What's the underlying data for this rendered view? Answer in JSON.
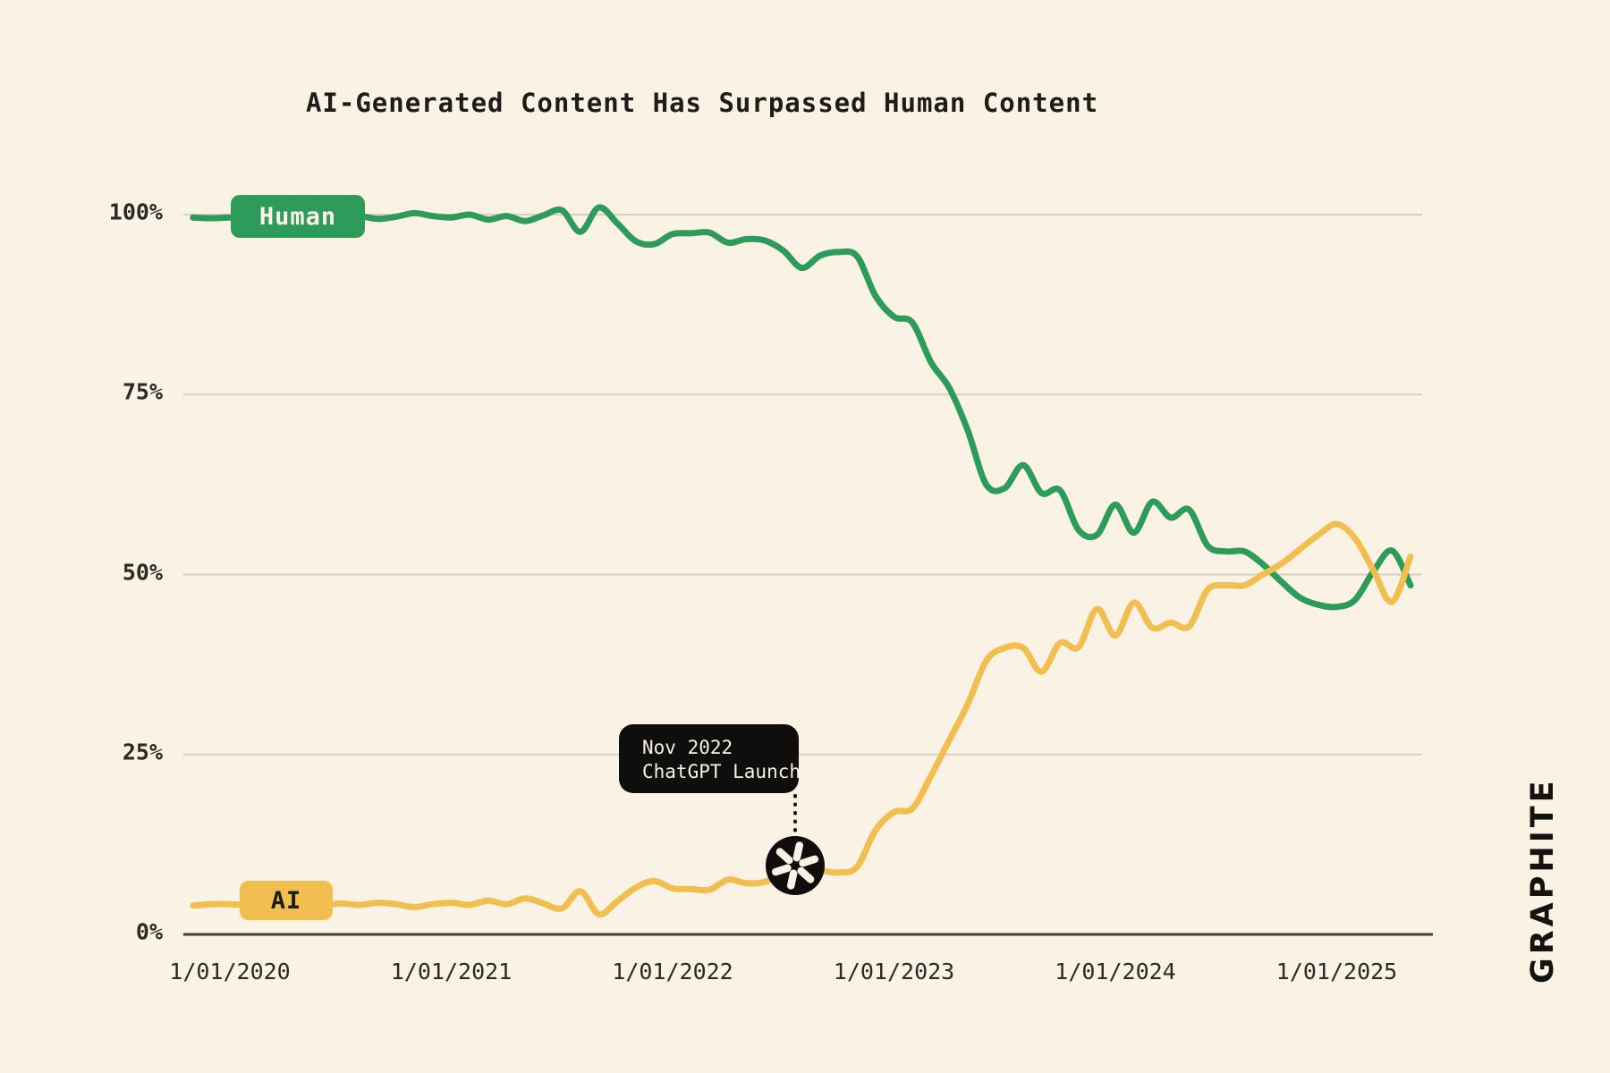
{
  "title": "AI-Generated Content Has Surpassed Human Content",
  "logo_text": "GRAPHITE",
  "colors": {
    "background": "#faf2e4",
    "human_line": "#2d9c5a",
    "ai_line": "#f2be4f",
    "gridline": "#d9cfbe",
    "axis_line": "#403d35",
    "text": "#2b2a25",
    "tooltip_bg": "#0f0e0c",
    "tooltip_text": "#f6f1e6"
  },
  "badges": {
    "human_label": "Human",
    "ai_label": "AI"
  },
  "annotation": {
    "line1": "Nov 2022",
    "line2": "ChatGPT Launches",
    "icon": "openai-logo"
  },
  "chart_data": {
    "type": "line",
    "title": "AI-Generated Content Has Surpassed Human Content",
    "xlabel": "",
    "ylabel": "",
    "grid": "horizontal",
    "legend_position": "inline-badges-on-lines",
    "ylim": [
      0,
      100
    ],
    "y_ticks": [
      {
        "label": "100%",
        "value": 100
      },
      {
        "label": "75%",
        "value": 75
      },
      {
        "label": "50%",
        "value": 50
      },
      {
        "label": "25%",
        "value": 25
      },
      {
        "label": "0%",
        "value": 0
      }
    ],
    "x_ticks": [
      "1/01/2020",
      "1/01/2021",
      "1/01/2022",
      "1/01/2023",
      "1/01/2024",
      "1/01/2025"
    ],
    "x_start": "11/2019",
    "x_step_months": 1,
    "unit": "percent of web content",
    "annotation_point": {
      "series": "AI",
      "x": "Nov 2022",
      "value": 9.5
    },
    "series": [
      {
        "name": "Human",
        "color": "#2d9c5a",
        "values": [
          99.6,
          99.5,
          99.6,
          99.7,
          99.5,
          99.6,
          99.4,
          99.7,
          99.5,
          99.8,
          99.4,
          99.7,
          100.2,
          99.8,
          99.6,
          100.0,
          99.3,
          99.8,
          99.1,
          99.9,
          100.6,
          97.6,
          101.0,
          98.8,
          96.3,
          95.9,
          97.3,
          97.4,
          97.5,
          96.1,
          96.6,
          96.4,
          95.0,
          92.6,
          94.3,
          94.8,
          94.2,
          88.7,
          85.8,
          85.0,
          79.5,
          75.9,
          70.0,
          62.5,
          62.0,
          65.2,
          61.3,
          61.7,
          56.2,
          55.5,
          59.7,
          55.8,
          60.1,
          57.9,
          59.0,
          54.0,
          53.2,
          53.2,
          51.4,
          49.0,
          46.8,
          45.8,
          45.5,
          46.5,
          50.5,
          53.3,
          48.5
        ]
      },
      {
        "name": "AI",
        "color": "#f2be4f",
        "values": [
          4.0,
          4.2,
          4.2,
          4.1,
          4.3,
          4.0,
          4.2,
          4.0,
          4.3,
          4.1,
          4.4,
          4.2,
          3.8,
          4.2,
          4.4,
          4.1,
          4.7,
          4.2,
          5.0,
          4.3,
          3.6,
          6.0,
          2.8,
          4.6,
          6.5,
          7.4,
          6.4,
          6.3,
          6.2,
          7.6,
          7.1,
          7.3,
          8.7,
          10.4,
          9.0,
          8.6,
          9.4,
          14.5,
          17.0,
          17.5,
          22.0,
          27.0,
          32.0,
          38.0,
          39.8,
          39.8,
          36.5,
          40.5,
          39.9,
          45.2,
          41.5,
          46.1,
          42.6,
          43.3,
          42.8,
          47.9,
          48.5,
          48.5,
          50.0,
          51.5,
          53.5,
          55.5,
          57.0,
          55.0,
          50.5,
          46.2,
          52.5
        ]
      }
    ]
  }
}
